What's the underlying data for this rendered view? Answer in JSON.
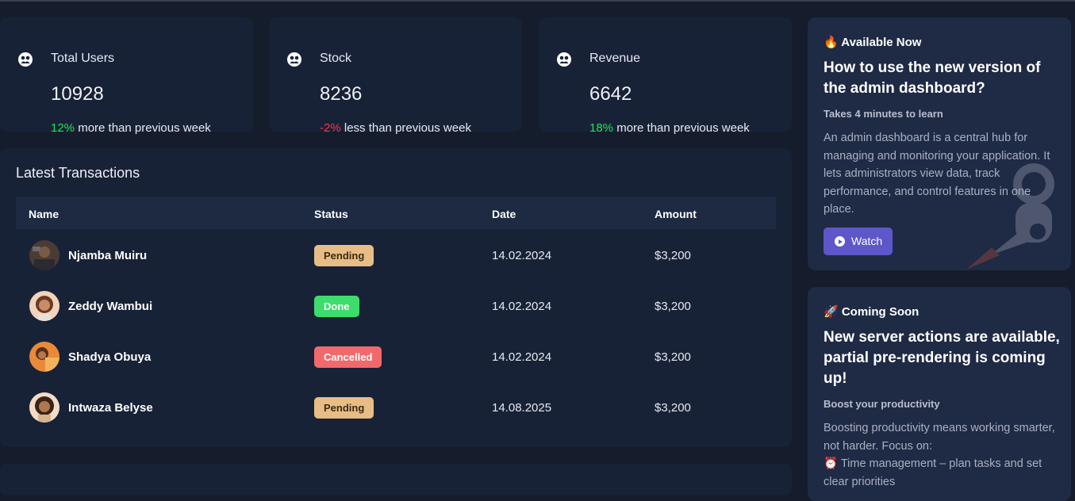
{
  "stats": [
    {
      "label": "Total Users",
      "value": "10928",
      "change": "12%",
      "change_text": "more than previous week"
    },
    {
      "label": "Stock",
      "value": "8236",
      "change": "-2%",
      "change_text": "less than previous week"
    },
    {
      "label": "Revenue",
      "value": "6642",
      "change": "18%",
      "change_text": "more than previous week"
    }
  ],
  "transactions": {
    "title": "Latest Transactions",
    "columns": [
      "Name",
      "Status",
      "Date",
      "Amount"
    ],
    "rows": [
      {
        "name": "Njamba Muiru",
        "status": "Pending",
        "date": "14.02.2024",
        "amount": "$3,200"
      },
      {
        "name": "Zeddy Wambui",
        "status": "Done",
        "date": "14.02.2024",
        "amount": "$3,200"
      },
      {
        "name": "Shadya Obuya",
        "status": "Cancelled",
        "date": "14.02.2024",
        "amount": "$3,200"
      },
      {
        "name": "Intwaza Belyse",
        "status": "Pending",
        "date": "14.08.2025",
        "amount": "$3,200"
      }
    ]
  },
  "side": {
    "card1": {
      "heading": "🔥 Available Now",
      "title": "How to use the new version of the admin dashboard?",
      "subtitle": "Takes 4 minutes to learn",
      "description": "An admin dashboard is a central hub for managing and monitoring your application. It lets administrators view data, track performance, and control features in one place.",
      "button": "Watch"
    },
    "card2": {
      "heading": "🚀 Coming Soon",
      "title": "New server actions are available, partial pre-rendering is coming up!",
      "subtitle": "Boost your productivity",
      "description": "Boosting productivity means working smarter, not harder. Focus on:",
      "bullet": "⏰ Time management – plan tasks and set clear priorities"
    }
  },
  "colors": {
    "positive": "#1fe35a",
    "negative": "#ff3344",
    "pending": "#e8bd85",
    "done": "#3ddc6c",
    "cancelled": "#f2696b",
    "accent": "#5d57c9"
  },
  "icons": {
    "stat_icon": "users-group-icon"
  }
}
